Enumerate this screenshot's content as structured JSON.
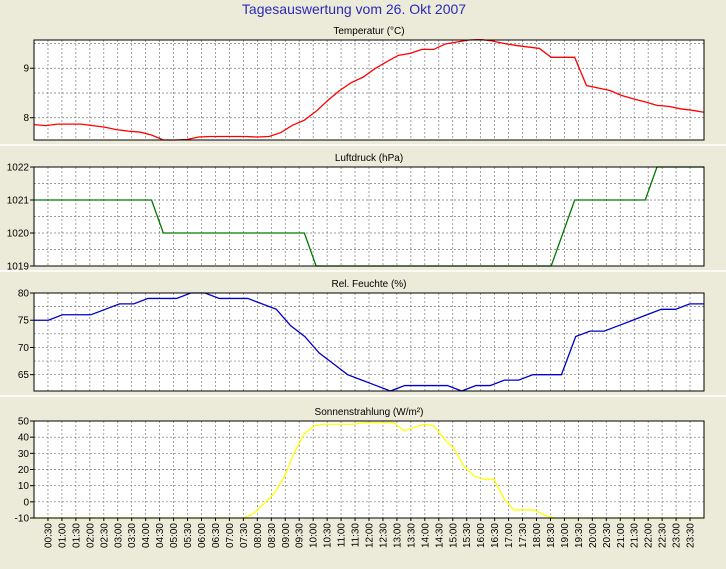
{
  "title": "Tagesauswertung vom 26. Okt 2007",
  "colors": {
    "background": "#ecebd9",
    "plot_area": "#ffffff",
    "title": "#2a2ab8",
    "grid": "#7a7a7a",
    "separator": "#ffffff"
  },
  "chart_data": [
    {
      "type": "line",
      "title": "Temperatur (°C)",
      "color": "#ff0000",
      "ylim": [
        7.55,
        9.57
      ],
      "yticks": [
        8,
        9
      ],
      "ygrid": [
        8,
        8.5,
        9,
        9.5
      ],
      "series": [
        {
          "values": [
            7.86,
            7.84,
            7.87,
            7.87,
            7.87,
            7.84,
            7.81,
            7.76,
            7.73,
            7.71,
            7.65,
            7.55,
            7.55,
            7.56,
            7.61,
            7.62,
            7.62,
            7.62,
            7.62,
            7.61,
            7.62,
            7.7,
            7.85,
            7.95,
            8.13,
            8.35,
            8.55,
            8.71,
            8.82,
            8.99,
            9.13,
            9.26,
            9.3,
            9.38,
            9.38,
            9.49,
            9.53,
            9.57,
            9.58,
            9.55,
            9.5,
            9.46,
            9.43,
            9.4,
            9.22,
            9.22,
            9.22,
            8.65,
            8.6,
            8.55,
            8.45,
            8.38,
            8.32,
            8.25,
            8.23,
            8.18,
            8.15,
            8.11
          ]
        }
      ]
    },
    {
      "type": "line",
      "title": "Luftdruck (hPa)",
      "color": "#007a00",
      "ylim": [
        1019,
        1022
      ],
      "yticks": [
        1019,
        1020,
        1021,
        1022
      ],
      "ygrid": [
        1019,
        1019.5,
        1020,
        1020.5,
        1021,
        1021.5,
        1022
      ],
      "series": [
        {
          "values": [
            1021,
            1021,
            1021,
            1021,
            1021,
            1021,
            1021,
            1021,
            1021,
            1021,
            1021,
            1020,
            1020,
            1020,
            1020,
            1020,
            1020,
            1020,
            1020,
            1020,
            1020,
            1020,
            1020,
            1020,
            1019,
            1019,
            1019,
            1019,
            1019,
            1019,
            1019,
            1019,
            1019,
            1019,
            1019,
            1019,
            1019,
            1019,
            1019,
            1019,
            1019,
            1019,
            1019,
            1019,
            1019,
            1020,
            1021,
            1021,
            1021,
            1021,
            1021,
            1021,
            1021,
            1022,
            1022,
            1022,
            1022,
            1022
          ]
        }
      ]
    },
    {
      "type": "line",
      "title": "Rel. Feuchte (%)",
      "color": "#0000c8",
      "ylim": [
        62,
        80
      ],
      "yticks": [
        65,
        70,
        75,
        80
      ],
      "ygrid": [
        65,
        67.5,
        70,
        72.5,
        75,
        77.5,
        80
      ],
      "series": [
        {
          "values": [
            75,
            75,
            76,
            76,
            76,
            77,
            78,
            78,
            79,
            79,
            79,
            80,
            80,
            79,
            79,
            79,
            78,
            77,
            74,
            72,
            69,
            67,
            65,
            64,
            63,
            62,
            63,
            63,
            63,
            63,
            62,
            63,
            63,
            64,
            64,
            65,
            65,
            65,
            72,
            73,
            73,
            74,
            75,
            76,
            77,
            77,
            78,
            78
          ]
        }
      ]
    },
    {
      "type": "line",
      "title": "Sonnenstrahlung (W/m²)",
      "color": "#ffff00",
      "ylim": [
        -10,
        50
      ],
      "yticks": [
        -10,
        0,
        10,
        20,
        30,
        40,
        50
      ],
      "ygrid": [
        -10,
        0,
        10,
        20,
        30,
        40,
        50
      ],
      "series": [
        {
          "values": [
            -10,
            -10,
            -10,
            -10,
            -10,
            -10,
            -10,
            -10,
            -10,
            -10,
            -10,
            -10,
            -10,
            -10,
            -10,
            -10,
            -10,
            -10,
            -10,
            -10,
            -10,
            -10,
            -7,
            -1,
            5,
            15,
            30,
            42,
            47,
            48,
            48,
            48,
            48,
            49,
            49,
            49,
            49,
            44,
            46,
            48,
            47,
            39,
            33,
            22,
            16,
            14,
            14,
            2,
            -5,
            -5,
            -5,
            -8,
            -10,
            -10,
            -10,
            -10,
            -10,
            -10,
            -10,
            -10,
            -10,
            -10,
            -10,
            -10,
            -10,
            -10,
            -10,
            -10
          ]
        }
      ]
    }
  ],
  "x_labels": [
    "00:30",
    "01:00",
    "01:30",
    "02:00",
    "02:30",
    "03:00",
    "03:30",
    "04:00",
    "04:30",
    "05:00",
    "05:30",
    "06:00",
    "06:30",
    "07:00",
    "07:30",
    "08:00",
    "08:30",
    "09:00",
    "09:30",
    "10:00",
    "10:30",
    "11:00",
    "11:30",
    "12:00",
    "12:30",
    "13:00",
    "13:30",
    "14:00",
    "14:30",
    "15:00",
    "15:30",
    "16:00",
    "16:30",
    "17:00",
    "17:30",
    "18:00",
    "18:30",
    "19:00",
    "19:30",
    "20:00",
    "20:30",
    "21:00",
    "21:30",
    "22:00",
    "22:30",
    "23:00",
    "23:30"
  ]
}
